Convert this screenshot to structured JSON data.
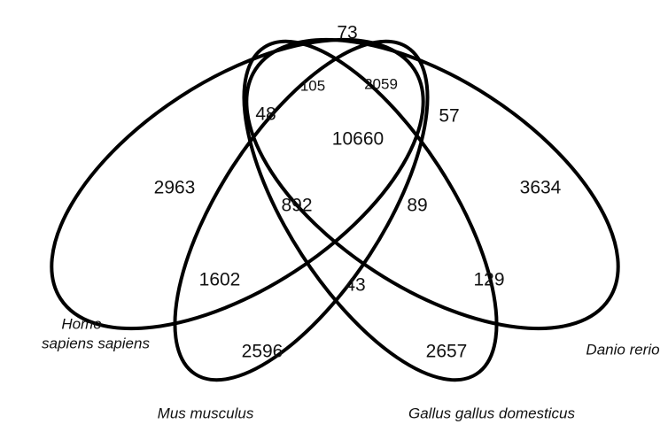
{
  "sets": [
    "Homo sapiens sapiens",
    "Mus musculus",
    "Gallus gallus domesticus",
    "Danio rerio"
  ],
  "homo_label": [
    "Homo",
    "sapiens sapiens"
  ],
  "regions": [
    "73",
    "105",
    "2059",
    "48",
    "10660",
    "57",
    "2963",
    "892",
    "89",
    "3634",
    "1602",
    "43",
    "129",
    "2596",
    "2657"
  ]
}
